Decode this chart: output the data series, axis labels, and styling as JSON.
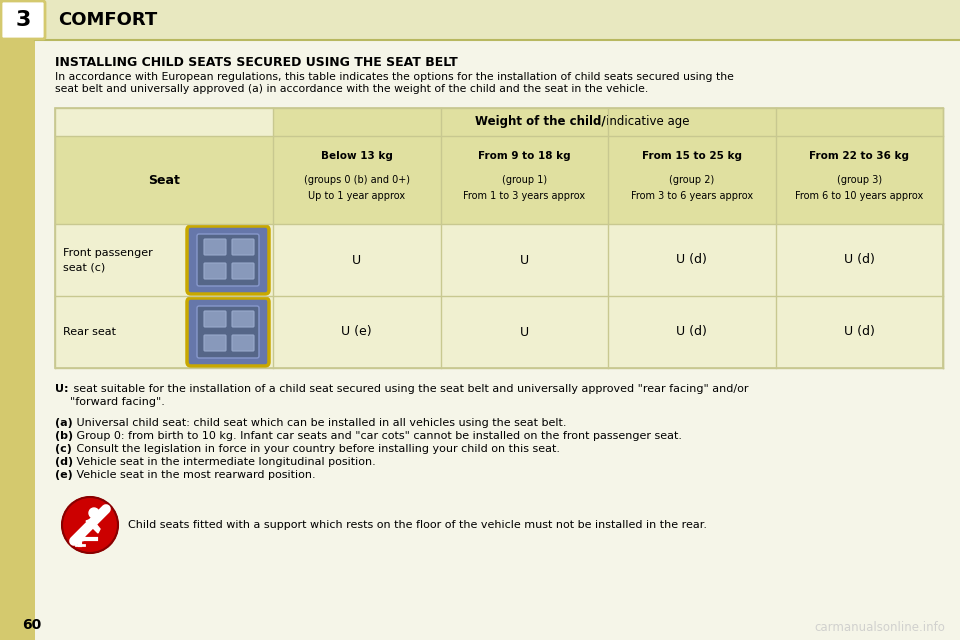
{
  "page_bg": "#f5f5e8",
  "header_bg": "#e8e8c0",
  "header_text": "COMFORT",
  "chapter_num": "3",
  "title": "INSTALLING CHILD SEATS SECURED USING THE SEAT BELT",
  "intro_text": "In accordance with European regulations, this table indicates the options for the installation of child seats secured using the\nseat belt and universally approved (a) in accordance with the weight of the child and the seat in the vehicle.",
  "table_header_bg": "#e0e0a0",
  "table_cell_bg": "#f0f0d0",
  "table_border": "#c8c890",
  "col_header_bold": "Weight of the child/",
  "col_header_normal": "indicative age",
  "seat_col_header": "Seat",
  "columns": [
    {
      "bold": "Below 13 kg",
      "normal": "(groups 0 (b) and 0+)\nUp to 1 year approx"
    },
    {
      "bold": "From 9 to 18 kg",
      "normal": "(group 1)\nFrom 1 to 3 years approx"
    },
    {
      "bold": "From 15 to 25 kg",
      "normal": "(group 2)\nFrom 3 to 6 years approx"
    },
    {
      "bold": "From 22 to 36 kg",
      "normal": "(group 3)\nFrom 6 to 10 years approx"
    }
  ],
  "rows": [
    {
      "seat_name": "Front passenger\nseat (c)",
      "values": [
        "U",
        "U",
        "U (d)",
        "U (d)"
      ]
    },
    {
      "seat_name": "Rear seat",
      "values": [
        "U (e)",
        "U",
        "U (d)",
        "U (d)"
      ]
    }
  ],
  "footnote_u_bold": "U:",
  "footnote_u_rest": " seat suitable for the installation of a child seat secured using the seat belt and universally approved \"rear facing\" and/or",
  "footnote_u_line2": "\"forward facing\".",
  "footnotes": [
    {
      "bold": "(a)",
      "rest": " Universal child seat: child seat which can be installed in all vehicles using the seat belt."
    },
    {
      "bold": "(b)",
      "rest": " Group 0: from birth to 10 kg. Infant car seats and \"car cots\" cannot be installed on the front passenger seat."
    },
    {
      "bold": "(c)",
      "rest": " Consult the legislation in force in your country before installing your child on this seat."
    },
    {
      "bold": "(d)",
      "rest": " Vehicle seat in the intermediate longitudinal position."
    },
    {
      "bold": "(e)",
      "rest": " Vehicle seat in the most rearward position."
    }
  ],
  "warning_text": "Child seats fitted with a support which rests on the floor of the vehicle must not be installed in the rear.",
  "page_num": "60",
  "watermark": "carmanualsonline.info",
  "sidebar_color": "#d4c96e",
  "header_line_color": "#b8b860"
}
